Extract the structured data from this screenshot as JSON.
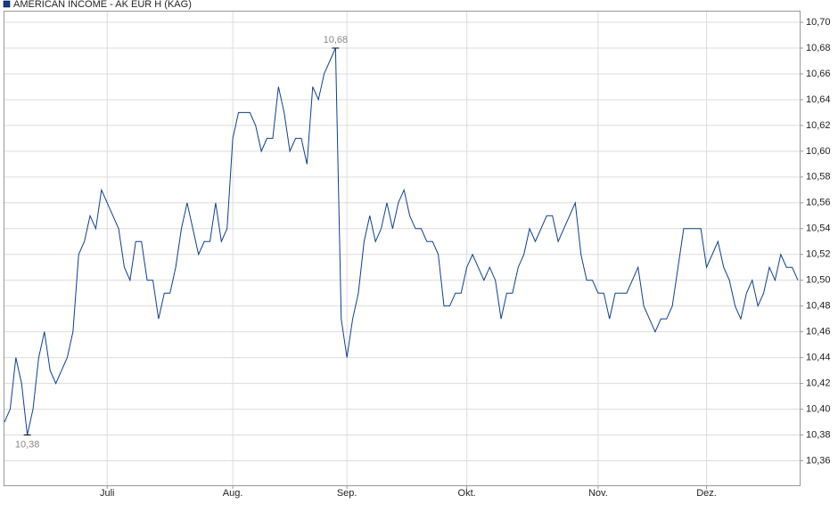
{
  "chart_data": {
    "type": "line",
    "legend": "AMERICAN INCOME - AK EUR H (KAG)",
    "color": "#0d3f8f",
    "grid": true,
    "categories": [
      null,
      null,
      null,
      null,
      null,
      null,
      null,
      null,
      null,
      null,
      null,
      null,
      null,
      null,
      null,
      null,
      null,
      null,
      "Juli",
      null,
      null,
      null,
      null,
      null,
      null,
      null,
      null,
      null,
      null,
      null,
      null,
      null,
      null,
      null,
      null,
      null,
      null,
      null,
      null,
      null,
      "Aug.",
      null,
      null,
      null,
      null,
      null,
      null,
      null,
      null,
      null,
      null,
      null,
      null,
      null,
      null,
      null,
      null,
      null,
      null,
      null,
      "Sep.",
      null,
      null,
      null,
      null,
      null,
      null,
      null,
      null,
      null,
      null,
      null,
      null,
      null,
      null,
      null,
      null,
      null,
      null,
      null,
      null,
      "Okt.",
      null,
      null,
      null,
      null,
      null,
      null,
      null,
      null,
      null,
      null,
      null,
      null,
      null,
      null,
      null,
      null,
      null,
      null,
      null,
      null,
      null,
      null,
      "Nov.",
      null,
      null,
      null,
      null,
      null,
      null,
      null,
      null,
      null,
      null,
      null,
      null,
      null,
      null,
      null,
      null,
      null,
      null,
      "Dez.",
      null,
      null,
      null,
      null,
      null,
      null,
      null,
      null,
      null,
      null,
      null,
      null,
      null,
      null,
      null,
      null
    ],
    "values": [
      10.39,
      10.4,
      10.44,
      10.42,
      10.38,
      10.4,
      10.44,
      10.46,
      10.43,
      10.42,
      10.43,
      10.44,
      10.46,
      10.52,
      10.53,
      10.55,
      10.54,
      10.57,
      10.56,
      10.55,
      10.54,
      10.51,
      10.5,
      10.53,
      10.53,
      10.5,
      10.5,
      10.47,
      10.49,
      10.49,
      10.51,
      10.54,
      10.56,
      10.54,
      10.52,
      10.53,
      10.53,
      10.56,
      10.53,
      10.54,
      10.61,
      10.63,
      10.63,
      10.63,
      10.62,
      10.6,
      10.61,
      10.61,
      10.65,
      10.63,
      10.6,
      10.61,
      10.61,
      10.59,
      10.65,
      10.64,
      10.66,
      10.67,
      10.68,
      10.47,
      10.44,
      10.47,
      10.49,
      10.53,
      10.55,
      10.53,
      10.54,
      10.56,
      10.54,
      10.56,
      10.57,
      10.55,
      10.54,
      10.54,
      10.53,
      10.53,
      10.52,
      10.48,
      10.48,
      10.49,
      10.49,
      10.51,
      10.52,
      10.51,
      10.5,
      10.51,
      10.5,
      10.47,
      10.49,
      10.49,
      10.51,
      10.52,
      10.54,
      10.53,
      10.54,
      10.55,
      10.55,
      10.53,
      10.54,
      10.55,
      10.56,
      10.52,
      10.5,
      10.5,
      10.49,
      10.49,
      10.47,
      10.49,
      10.49,
      10.49,
      10.5,
      10.51,
      10.48,
      10.47,
      10.46,
      10.47,
      10.47,
      10.48,
      10.51,
      10.54,
      10.54,
      10.54,
      10.54,
      10.51,
      10.52,
      10.53,
      10.51,
      10.5,
      10.48,
      10.47,
      10.49,
      10.5,
      10.48,
      10.49,
      10.51,
      10.5,
      10.52,
      10.51,
      10.51,
      10.5
    ],
    "value_labels": [
      null,
      null,
      null,
      null,
      "10,38",
      null,
      null,
      null,
      null,
      null,
      null,
      null,
      null,
      null,
      null,
      null,
      null,
      null,
      null,
      null,
      null,
      null,
      null,
      null,
      null,
      null,
      null,
      null,
      null,
      null,
      null,
      null,
      null,
      null,
      null,
      null,
      null,
      null,
      null,
      null,
      null,
      null,
      null,
      null,
      null,
      null,
      null,
      null,
      null,
      null,
      null,
      null,
      null,
      null,
      null,
      null,
      null,
      null,
      "10,68",
      null,
      null,
      null,
      null,
      null,
      null,
      null,
      null,
      null,
      null,
      null,
      null,
      null,
      null,
      null,
      null,
      null,
      null,
      null,
      null,
      null,
      null,
      null,
      null,
      null,
      null,
      null,
      null,
      null,
      null,
      null,
      null,
      null,
      null,
      null,
      null,
      null,
      null,
      null,
      null,
      null,
      null,
      null,
      null,
      null,
      null,
      null,
      null,
      null,
      null,
      null,
      null,
      null,
      null,
      null,
      null,
      null,
      null,
      null,
      null,
      null,
      null,
      null,
      null,
      null,
      null,
      null,
      null,
      null,
      null,
      null,
      null,
      null,
      null,
      null,
      null,
      null,
      null,
      null,
      null,
      null
    ],
    "ylim": [
      10.341,
      10.709
    ],
    "yticks": [
      {
        "value": 10.36,
        "label": "10,36"
      },
      {
        "value": 10.38,
        "label": "10,38"
      },
      {
        "value": 10.4,
        "label": "10,40"
      },
      {
        "value": 10.42,
        "label": "10,42"
      },
      {
        "value": 10.44,
        "label": "10,44"
      },
      {
        "value": 10.46,
        "label": "10,46"
      },
      {
        "value": 10.48,
        "label": "10,48"
      },
      {
        "value": 10.5,
        "label": "10,50"
      },
      {
        "value": 10.52,
        "label": "10,52"
      },
      {
        "value": 10.54,
        "label": "10,54"
      },
      {
        "value": 10.56,
        "label": "10,56"
      },
      {
        "value": 10.58,
        "label": "10,58"
      },
      {
        "value": 10.6,
        "label": "10,60"
      },
      {
        "value": 10.62,
        "label": "10,62"
      },
      {
        "value": 10.64,
        "label": "10,64"
      },
      {
        "value": 10.66,
        "label": "10,66"
      },
      {
        "value": 10.68,
        "label": "10,68"
      },
      {
        "value": 10.7,
        "label": "10,70"
      }
    ]
  }
}
